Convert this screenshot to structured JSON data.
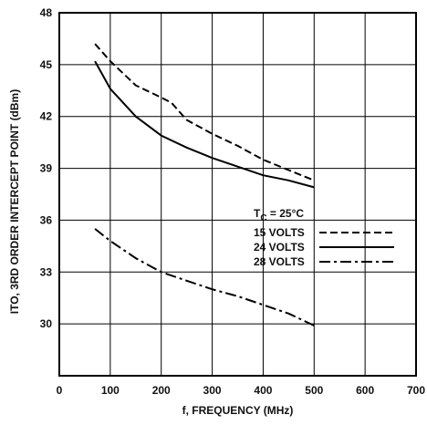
{
  "chart_data": {
    "type": "line",
    "xlabel": "f, FREQUENCY (MHz)",
    "ylabel": "ITO, 3RD ORDER INTERCEPT POINT (dBm)",
    "xlim": [
      0,
      700
    ],
    "ylim": [
      27,
      48
    ],
    "x_ticks": [
      0,
      100,
      200,
      300,
      400,
      500,
      600,
      700
    ],
    "y_ticks": [
      30,
      33,
      36,
      39,
      42,
      45,
      48
    ],
    "grid": true,
    "legend": {
      "title_prefix": "T",
      "title_sub": "C",
      "title_suffix": " = 25°C",
      "placement": "right-middle"
    },
    "series": [
      {
        "name": "15 VOLTS",
        "style": "dashed",
        "x": [
          70,
          100,
          150,
          200,
          220,
          250,
          300,
          350,
          400,
          450,
          500
        ],
        "y": [
          46.2,
          45.2,
          43.8,
          43.1,
          42.8,
          41.8,
          41.0,
          40.3,
          39.5,
          38.9,
          38.3
        ]
      },
      {
        "name": "24 VOLTS",
        "style": "solid",
        "x": [
          70,
          100,
          150,
          200,
          250,
          300,
          350,
          400,
          450,
          500
        ],
        "y": [
          45.2,
          43.6,
          42.0,
          40.9,
          40.2,
          39.6,
          39.1,
          38.6,
          38.3,
          37.9
        ],
        "markers": "none"
      },
      {
        "name": "28 VOLTS",
        "style": "dashdot",
        "x": [
          70,
          100,
          150,
          200,
          250,
          300,
          350,
          400,
          450,
          500
        ],
        "y": [
          35.5,
          34.8,
          33.8,
          33.0,
          32.5,
          32.0,
          31.6,
          31.1,
          30.6,
          29.9
        ]
      }
    ]
  }
}
